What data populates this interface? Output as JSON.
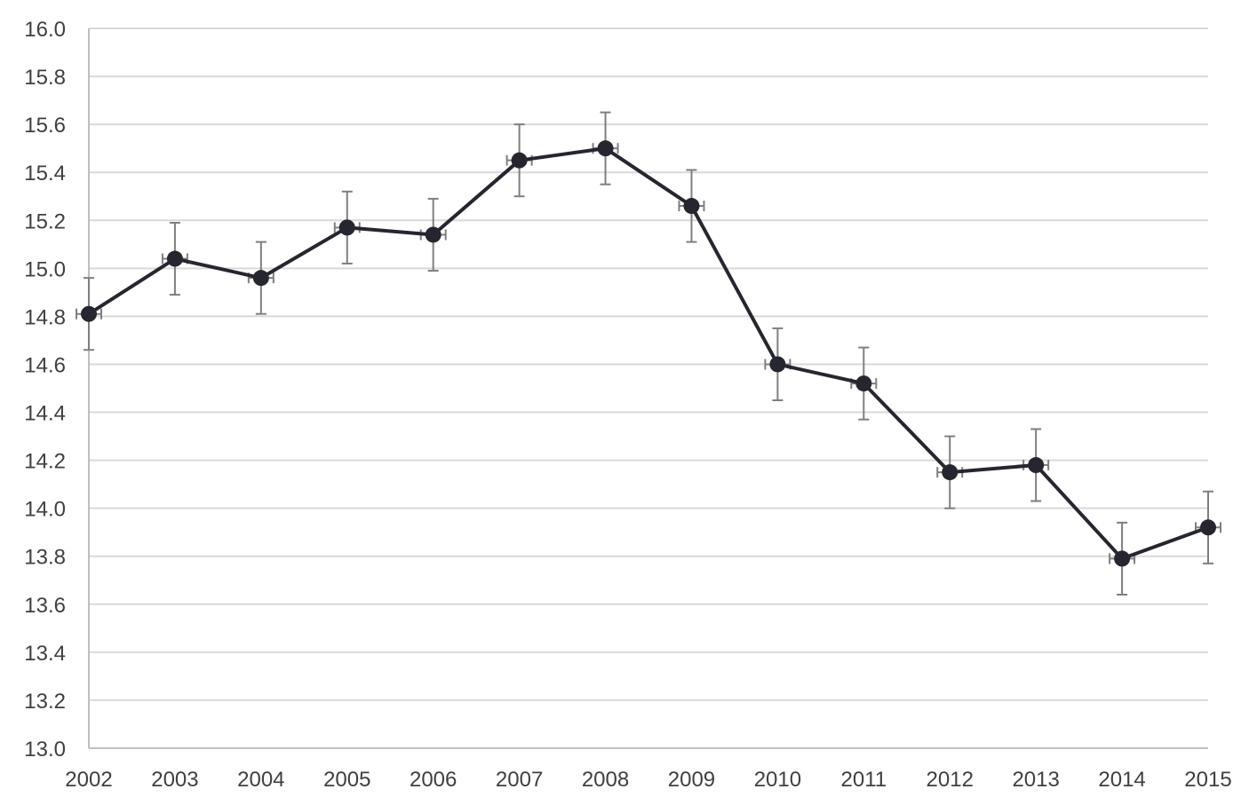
{
  "chart_data": {
    "type": "line",
    "title": "",
    "xlabel": "",
    "ylabel": "",
    "x": [
      2002,
      2003,
      2004,
      2005,
      2006,
      2007,
      2008,
      2009,
      2010,
      2011,
      2012,
      2013,
      2014,
      2015
    ],
    "x_tick_labels": [
      "2002",
      "2003",
      "2004",
      "2005",
      "2006",
      "2007",
      "2008",
      "2009",
      "2010",
      "2011",
      "2012",
      "2013",
      "2014",
      "2015"
    ],
    "ylim": [
      13.0,
      16.0
    ],
    "y_tick_labels": [
      "13.0",
      "13.2",
      "13.4",
      "13.6",
      "13.8",
      "14.0",
      "14.2",
      "14.4",
      "14.6",
      "14.8",
      "15.0",
      "15.2",
      "15.4",
      "15.6",
      "15.8",
      "16.0"
    ],
    "grid": "horizontal",
    "legend": "none",
    "series": [
      {
        "values": [
          14.81,
          15.04,
          14.96,
          15.17,
          15.14,
          15.45,
          15.5,
          15.26,
          14.6,
          14.52,
          14.15,
          14.18,
          13.79,
          13.92
        ],
        "error_plus_minus": 0.15,
        "color": "#262630",
        "error_bar_color": "#7f7f7f"
      }
    ],
    "colors": {
      "grid": "#d9d9d9",
      "axis": "#bfbfbf",
      "tick_text": "#404040"
    }
  }
}
